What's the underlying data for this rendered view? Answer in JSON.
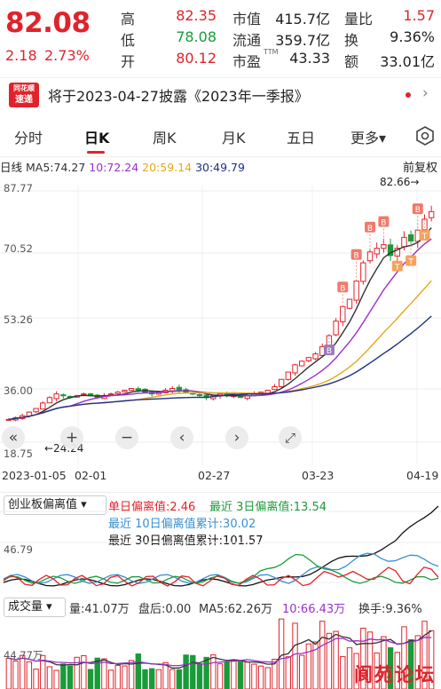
{
  "quote": {
    "price": "82.08",
    "change": "2.18",
    "change_pct": "2.73%",
    "high_label": "高",
    "high": "82.35",
    "low_label": "低",
    "low": "78.08",
    "open_label": "开",
    "open": "80.12",
    "mktcap_label": "市值",
    "mktcap": "415.7亿",
    "float_label": "流通",
    "float": "359.7亿",
    "pe_label": "市盈",
    "pe_sup": "TTM",
    "pe": "43.33",
    "volratio_label": "量比",
    "volratio": "1.57",
    "turnover_label": "换",
    "turnover": "9.36%",
    "amount_label": "额",
    "amount": "33.01亿"
  },
  "news": {
    "badge_top": "同花顺",
    "badge_bottom": "速递",
    "text": "将于2023-04-27披露《2023年一季报》",
    "arrow": "›"
  },
  "tabs": [
    {
      "label": "分时"
    },
    {
      "label": "日K"
    },
    {
      "label": "周K"
    },
    {
      "label": "月K"
    },
    {
      "label": "五日"
    },
    {
      "label": "更多▾"
    }
  ],
  "ma": {
    "period": "日线",
    "ma5": "MA5:74.27",
    "ma10": "10:72.24",
    "ma20": "20:59.14",
    "ma30": "30:49.79",
    "adjust": "前复权",
    "colors": {
      "ma5": "#333333",
      "ma10": "#9b2fc9",
      "ma20": "#e6a817",
      "ma30": "#1f2f8a"
    }
  },
  "kaxis": [
    "87.77",
    "70.52",
    "53.26",
    "36.00",
    "18.75"
  ],
  "markers": {
    "max": "82.66→",
    "min": "←24.24"
  },
  "dates": [
    "2023-01-05",
    "02-01",
    "02-27",
    "03-23",
    "04-19"
  ],
  "indicator": {
    "selector": "创业板偏离值 ▾",
    "single": "单日偏离值:2.46",
    "d3": "最近 3日偏离值:13.54",
    "d10": "最近 10日偏离值累计:30.02",
    "d30": "最近 30日偏离值累计:101.57",
    "axis": "46.79"
  },
  "volume": {
    "selector": "成交量 ▾",
    "vol": "量:41.07万",
    "after": "盘后:0.00",
    "ma5": "MA5:62.26万",
    "ma10": "10:66.43万",
    "turnover": "换手:9.36%",
    "axis": "44.77万"
  },
  "controls": [
    "«",
    "+",
    "−",
    "‹",
    "›",
    "⤢"
  ],
  "watermark": "阆苑论坛",
  "chart_data": {
    "type": "candlestick",
    "ylim": [
      18.75,
      87.77
    ],
    "x": [
      "2023-01-05",
      "02-01",
      "02-27",
      "03-23",
      "04-19"
    ],
    "close_path": [
      25,
      25.5,
      26,
      27,
      28,
      29.5,
      31,
      32,
      31.5,
      31,
      31.5,
      32,
      31.5,
      31,
      31.5,
      32,
      32.5,
      33,
      33.5,
      33,
      32.5,
      32,
      32.5,
      33,
      33.5,
      33,
      32.5,
      32,
      31.5,
      31,
      31.5,
      32,
      31.5,
      31.5,
      31,
      31.5,
      32,
      32.5,
      33,
      34,
      36,
      38,
      40,
      41,
      42,
      43,
      45,
      48,
      52,
      56,
      58,
      63,
      68,
      71,
      72,
      73,
      70,
      72,
      75,
      74,
      77,
      80,
      82.08
    ]
  }
}
